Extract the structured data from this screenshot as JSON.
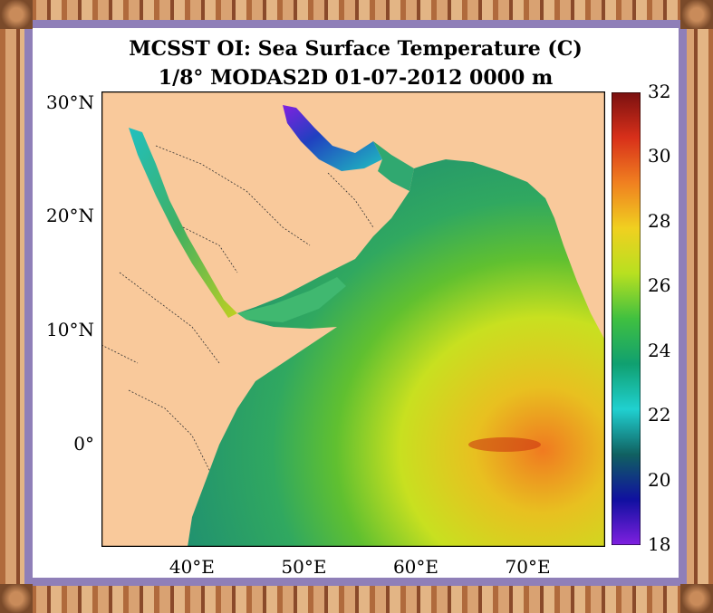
{
  "title_line1": "MCSST OI:  Sea Surface Temperature (C)",
  "title_line2": "1/8° MODAS2D 01-07-2012 0000 m",
  "lat_labels": [
    {
      "text": "30°N",
      "lat": 30
    },
    {
      "text": "20°N",
      "lat": 20
    },
    {
      "text": "10°N",
      "lat": 10
    },
    {
      "text": "0°",
      "lat": 0
    }
  ],
  "lon_labels": [
    {
      "text": "40°E",
      "lon": 40
    },
    {
      "text": "50°E",
      "lon": 50
    },
    {
      "text": "60°E",
      "lon": 60
    },
    {
      "text": "70°E",
      "lon": 70
    }
  ],
  "colorbar": {
    "min": 18,
    "max": 32,
    "ticks": [
      "32",
      "30",
      "28",
      "26",
      "24",
      "22",
      "20",
      "18"
    ],
    "tick_values": [
      32,
      30,
      28,
      26,
      24,
      22,
      20,
      18
    ],
    "colors": [
      "#7a1010",
      "#d8301a",
      "#f08020",
      "#f0d020",
      "#b8e020",
      "#40c040",
      "#10a070",
      "#20d0d0",
      "#106060",
      "#1010a0",
      "#8020e0"
    ]
  },
  "map_extent": {
    "lon_min": 32,
    "lon_max": 77,
    "lat_min": -9,
    "lat_max": 31
  },
  "land_color": "#f9c99b",
  "border_colors": {
    "outer": "#a86034",
    "inner": "#8f7fb8"
  }
}
